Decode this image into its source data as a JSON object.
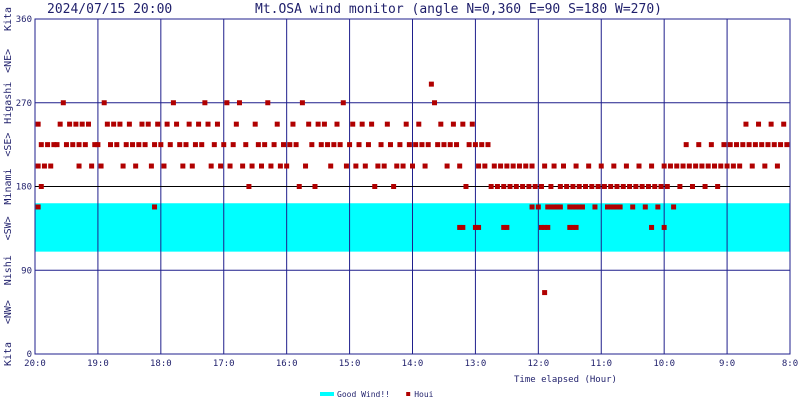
{
  "header": {
    "datetime": "2024/07/15 20:00",
    "title": "Mt.OSA wind monitor (angle N=0,360 E=90 S=180 W=270)"
  },
  "chart_data": {
    "type": "scatter",
    "title": "Mt.OSA wind monitor (angle N=0,360 E=90 S=180 W=270)",
    "xlabel": "Time elapsed (Hour)",
    "ylabel": "Kita <NE> Higashi <SE> Minami <SW> Nishi <NW> Kita",
    "ylabel_parts": [
      "Kita",
      "<NE>",
      "Higashi",
      "<SE>",
      "Minami",
      "<SW>",
      "Nishi",
      "<NW>",
      "Kita"
    ],
    "ylim": [
      0,
      360
    ],
    "yticks": [
      0,
      90,
      180,
      270,
      360
    ],
    "xlim": [
      0,
      12
    ],
    "xtick_labels": [
      "20:0",
      "19:0",
      "18:0",
      "17:0",
      "16:0",
      "15:0",
      "14:0",
      "13:0",
      "12:0",
      "11:0",
      "10:0",
      "9:0",
      "8:0"
    ],
    "good_wind_band": [
      110,
      162
    ],
    "good_wind_color": "#00ffff",
    "point_color": "#b00000",
    "grid": true,
    "legend_position": "bottom-center",
    "legend": [
      {
        "name": "Good Wind!!",
        "color": "#00ffff",
        "type": "band"
      },
      {
        "name": "Houi",
        "color": "#b00000",
        "type": "point"
      }
    ],
    "series": [
      {
        "name": "Houi",
        "points": [
          [
            0.05,
            158
          ],
          [
            0.05,
            247
          ],
          [
            0.05,
            202
          ],
          [
            0.1,
            225
          ],
          [
            0.1,
            180
          ],
          [
            0.15,
            202
          ],
          [
            0.2,
            225
          ],
          [
            0.25,
            202
          ],
          [
            0.3,
            225
          ],
          [
            0.35,
            225
          ],
          [
            0.4,
            247
          ],
          [
            0.45,
            270
          ],
          [
            0.5,
            225
          ],
          [
            0.55,
            247
          ],
          [
            0.6,
            225
          ],
          [
            0.65,
            247
          ],
          [
            0.7,
            225
          ],
          [
            0.7,
            202
          ],
          [
            0.75,
            247
          ],
          [
            0.8,
            225
          ],
          [
            0.85,
            247
          ],
          [
            0.9,
            202
          ],
          [
            0.95,
            225
          ],
          [
            1.0,
            225
          ],
          [
            1.05,
            202
          ],
          [
            1.1,
            270
          ],
          [
            1.15,
            247
          ],
          [
            1.2,
            225
          ],
          [
            1.25,
            247
          ],
          [
            1.3,
            225
          ],
          [
            1.35,
            247
          ],
          [
            1.4,
            202
          ],
          [
            1.45,
            225
          ],
          [
            1.5,
            247
          ],
          [
            1.55,
            225
          ],
          [
            1.6,
            202
          ],
          [
            1.65,
            225
          ],
          [
            1.7,
            247
          ],
          [
            1.75,
            225
          ],
          [
            1.8,
            247
          ],
          [
            1.85,
            202
          ],
          [
            1.9,
            158
          ],
          [
            1.9,
            225
          ],
          [
            1.95,
            247
          ],
          [
            2.0,
            225
          ],
          [
            2.05,
            202
          ],
          [
            2.1,
            247
          ],
          [
            2.15,
            225
          ],
          [
            2.2,
            270
          ],
          [
            2.25,
            247
          ],
          [
            2.3,
            225
          ],
          [
            2.35,
            202
          ],
          [
            2.4,
            225
          ],
          [
            2.45,
            247
          ],
          [
            2.5,
            202
          ],
          [
            2.55,
            225
          ],
          [
            2.6,
            247
          ],
          [
            2.65,
            225
          ],
          [
            2.7,
            270
          ],
          [
            2.75,
            247
          ],
          [
            2.8,
            202
          ],
          [
            2.85,
            225
          ],
          [
            2.9,
            247
          ],
          [
            2.95,
            202
          ],
          [
            3.0,
            225
          ],
          [
            3.05,
            270
          ],
          [
            3.1,
            202
          ],
          [
            3.15,
            225
          ],
          [
            3.2,
            247
          ],
          [
            3.25,
            270
          ],
          [
            3.3,
            202
          ],
          [
            3.35,
            225
          ],
          [
            3.4,
            180
          ],
          [
            3.45,
            202
          ],
          [
            3.5,
            247
          ],
          [
            3.55,
            225
          ],
          [
            3.6,
            202
          ],
          [
            3.65,
            225
          ],
          [
            3.7,
            270
          ],
          [
            3.75,
            202
          ],
          [
            3.8,
            225
          ],
          [
            3.85,
            247
          ],
          [
            3.9,
            202
          ],
          [
            3.95,
            225
          ],
          [
            4.0,
            202
          ],
          [
            4.05,
            225
          ],
          [
            4.1,
            247
          ],
          [
            4.15,
            225
          ],
          [
            4.2,
            180
          ],
          [
            4.25,
            270
          ],
          [
            4.3,
            202
          ],
          [
            4.35,
            247
          ],
          [
            4.4,
            225
          ],
          [
            4.45,
            180
          ],
          [
            4.5,
            247
          ],
          [
            4.55,
            225
          ],
          [
            4.6,
            247
          ],
          [
            4.65,
            225
          ],
          [
            4.7,
            202
          ],
          [
            4.75,
            225
          ],
          [
            4.8,
            247
          ],
          [
            4.85,
            225
          ],
          [
            4.9,
            270
          ],
          [
            4.95,
            202
          ],
          [
            5.0,
            225
          ],
          [
            5.05,
            247
          ],
          [
            5.1,
            202
          ],
          [
            5.15,
            225
          ],
          [
            5.2,
            247
          ],
          [
            5.25,
            202
          ],
          [
            5.3,
            225
          ],
          [
            5.35,
            247
          ],
          [
            5.4,
            180
          ],
          [
            5.45,
            202
          ],
          [
            5.5,
            225
          ],
          [
            5.55,
            202
          ],
          [
            5.6,
            247
          ],
          [
            5.65,
            225
          ],
          [
            5.7,
            180
          ],
          [
            5.75,
            202
          ],
          [
            5.8,
            225
          ],
          [
            5.85,
            202
          ],
          [
            5.9,
            247
          ],
          [
            5.95,
            225
          ],
          [
            6.0,
            202
          ],
          [
            6.05,
            225
          ],
          [
            6.1,
            247
          ],
          [
            6.15,
            225
          ],
          [
            6.2,
            202
          ],
          [
            6.25,
            225
          ],
          [
            6.3,
            290
          ],
          [
            6.35,
            270
          ],
          [
            6.4,
            225
          ],
          [
            6.45,
            247
          ],
          [
            6.5,
            225
          ],
          [
            6.55,
            202
          ],
          [
            6.6,
            225
          ],
          [
            6.65,
            247
          ],
          [
            6.7,
            225
          ],
          [
            6.75,
            202
          ],
          [
            6.8,
            247
          ],
          [
            6.85,
            180
          ],
          [
            6.9,
            225
          ],
          [
            6.95,
            247
          ],
          [
            7.0,
            225
          ],
          [
            7.05,
            202
          ],
          [
            7.1,
            225
          ],
          [
            7.15,
            202
          ],
          [
            7.2,
            225
          ],
          [
            7.25,
            180
          ],
          [
            7.3,
            202
          ],
          [
            7.35,
            180
          ],
          [
            7.4,
            202
          ],
          [
            7.45,
            180
          ],
          [
            7.5,
            202
          ],
          [
            7.55,
            180
          ],
          [
            7.6,
            202
          ],
          [
            7.65,
            180
          ],
          [
            7.7,
            202
          ],
          [
            7.75,
            180
          ],
          [
            7.8,
            202
          ],
          [
            7.85,
            180
          ],
          [
            7.9,
            158
          ],
          [
            7.9,
            202
          ],
          [
            7.95,
            180
          ],
          [
            8.0,
            158
          ],
          [
            8.05,
            180
          ],
          [
            8.1,
            202
          ],
          [
            8.15,
            158
          ],
          [
            8.2,
            180
          ],
          [
            8.25,
            202
          ],
          [
            8.3,
            158
          ],
          [
            8.35,
            180
          ],
          [
            8.4,
            202
          ],
          [
            8.45,
            180
          ],
          [
            8.5,
            158
          ],
          [
            8.55,
            180
          ],
          [
            8.6,
            202
          ],
          [
            8.65,
            180
          ],
          [
            8.7,
            158
          ],
          [
            8.75,
            180
          ],
          [
            8.8,
            202
          ],
          [
            8.85,
            180
          ],
          [
            8.9,
            158
          ],
          [
            8.95,
            180
          ],
          [
            9.0,
            202
          ],
          [
            9.05,
            180
          ],
          [
            9.1,
            158
          ],
          [
            9.15,
            180
          ],
          [
            9.2,
            202
          ],
          [
            9.25,
            180
          ],
          [
            9.3,
            158
          ],
          [
            9.35,
            180
          ],
          [
            9.4,
            202
          ],
          [
            9.45,
            180
          ],
          [
            9.5,
            158
          ],
          [
            9.55,
            180
          ],
          [
            9.6,
            202
          ],
          [
            9.65,
            180
          ],
          [
            9.7,
            158
          ],
          [
            9.75,
            180
          ],
          [
            9.8,
            202
          ],
          [
            9.85,
            180
          ],
          [
            9.9,
            158
          ],
          [
            9.95,
            180
          ],
          [
            10.0,
            202
          ],
          [
            10.05,
            180
          ],
          [
            10.1,
            202
          ],
          [
            10.15,
            158
          ],
          [
            10.2,
            202
          ],
          [
            10.25,
            180
          ],
          [
            10.3,
            202
          ],
          [
            10.35,
            225
          ],
          [
            10.4,
            202
          ],
          [
            10.45,
            180
          ],
          [
            10.5,
            202
          ],
          [
            10.55,
            225
          ],
          [
            10.6,
            202
          ],
          [
            10.65,
            180
          ],
          [
            10.7,
            202
          ],
          [
            10.75,
            225
          ],
          [
            10.8,
            202
          ],
          [
            10.85,
            180
          ],
          [
            10.9,
            202
          ],
          [
            10.95,
            225
          ],
          [
            11.0,
            202
          ],
          [
            11.05,
            225
          ],
          [
            11.1,
            202
          ],
          [
            11.15,
            225
          ],
          [
            11.2,
            202
          ],
          [
            11.25,
            225
          ],
          [
            11.3,
            247
          ],
          [
            11.35,
            225
          ],
          [
            11.4,
            202
          ],
          [
            11.45,
            225
          ],
          [
            11.5,
            247
          ],
          [
            11.55,
            225
          ],
          [
            11.6,
            202
          ],
          [
            11.65,
            225
          ],
          [
            11.7,
            247
          ],
          [
            11.75,
            225
          ],
          [
            11.8,
            202
          ],
          [
            11.85,
            225
          ],
          [
            11.9,
            247
          ],
          [
            11.95,
            225
          ],
          [
            8.2,
            158
          ],
          [
            8.25,
            158
          ],
          [
            8.3,
            158
          ],
          [
            8.35,
            158
          ],
          [
            8.55,
            158
          ],
          [
            8.6,
            158
          ],
          [
            8.65,
            158
          ],
          [
            8.7,
            158
          ],
          [
            9.1,
            158
          ],
          [
            9.15,
            158
          ],
          [
            9.2,
            158
          ],
          [
            9.25,
            158
          ],
          [
            6.75,
            136
          ],
          [
            6.8,
            136
          ],
          [
            7.0,
            136
          ],
          [
            7.05,
            136
          ],
          [
            7.45,
            136
          ],
          [
            7.5,
            136
          ],
          [
            8.05,
            136
          ],
          [
            8.1,
            136
          ],
          [
            8.15,
            136
          ],
          [
            8.5,
            136
          ],
          [
            8.55,
            136
          ],
          [
            8.6,
            136
          ],
          [
            9.8,
            136
          ],
          [
            10.0,
            136
          ],
          [
            8.1,
            66
          ]
        ]
      }
    ]
  }
}
